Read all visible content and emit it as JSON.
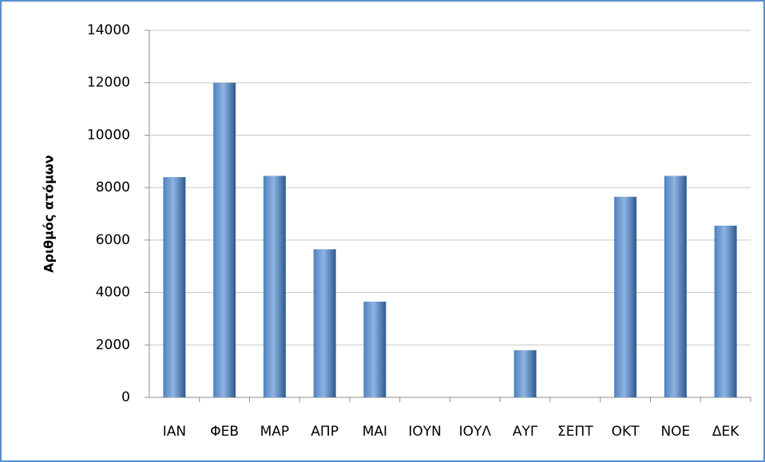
{
  "chart_data": {
    "type": "bar",
    "y_label": "Αριθμός ατόμων",
    "categories": [
      "ΙΑΝ",
      "ΦΕΒ",
      "ΜΑΡ",
      "ΑΠΡ",
      "ΜΑΙ",
      "ΙΟΥΝ",
      "ΙΟΥΛ",
      "ΑΥΓ",
      "ΣΕΠΤ",
      "ΟΚΤ",
      "ΝΟΕ",
      "ΔΕΚ"
    ],
    "values": [
      8400,
      12000,
      8450,
      5650,
      3650,
      0,
      0,
      1800,
      0,
      7650,
      8450,
      6550
    ],
    "color": "#4f81bd",
    "ylim": [
      0,
      14000
    ],
    "yticks": [
      0,
      2000,
      4000,
      6000,
      8000,
      10000,
      12000,
      14000
    ],
    "grid": true
  }
}
